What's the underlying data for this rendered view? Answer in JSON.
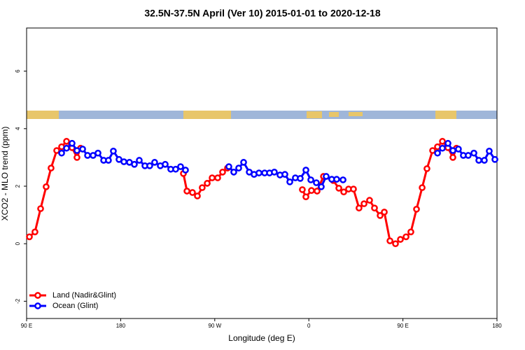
{
  "chart_data": {
    "type": "line",
    "title": "32.5N-37.5N April (Ver 10)   2015-01-01 to 2020-12-18",
    "x_label": "Longitude (deg E)",
    "y_label": "XCO2 - MLO trend (ppm)",
    "xlim": [
      90,
      540
    ],
    "xticks": [
      {
        "value": 90,
        "label": "90 E"
      },
      180,
      {
        "value": 270,
        "label": "90 W"
      },
      {
        "value": 360,
        "label": "0"
      },
      {
        "value": 450,
        "label": "90 E"
      },
      {
        "value": 540,
        "label": "180"
      }
    ],
    "ylim": [
      -2.6,
      7.5
    ],
    "yticks": [
      -2,
      0,
      2,
      4,
      6
    ],
    "legend": "bottom-left",
    "series": [
      {
        "name": "Land (Nadir&Glint)",
        "color": "#ff0000",
        "x": [
          92.7,
          98,
          103.4,
          108.7,
          113.4,
          118.8,
          123.5,
          128.2,
          133.5,
          138.2,
          141.6,
          null,
          240,
          243.4,
          248.7,
          253.4,
          258,
          262.8,
          267.5,
          272.8,
          277.5,
          282.2,
          null,
          353.8,
          357.2,
          362.5,
          367.9,
          374,
          383.3,
          388.7,
          393.4,
          398,
          402.7,
          408,
          412.8,
          418.1,
          422.8,
          428.2,
          432.2,
          437.6,
          442.9,
          447.6,
          453,
          457.6,
          463,
          468.4,
          473,
          478.4,
          483.1,
          487.8,
          493.1,
          497.8,
          501.2
        ],
        "values": [
          0.24,
          0.41,
          1.22,
          1.98,
          2.63,
          3.24,
          3.37,
          3.56,
          3.34,
          3.0,
          3.32,
          null,
          2.44,
          1.83,
          1.78,
          1.66,
          1.95,
          2.1,
          2.29,
          2.29,
          2.49,
          2.63,
          null,
          1.88,
          1.63,
          1.85,
          1.83,
          2.34,
          2.2,
          1.93,
          1.8,
          1.9,
          1.9,
          1.24,
          1.39,
          1.51,
          1.24,
          0.98,
          1.1,
          0.1,
          0,
          0.15,
          0.24,
          0.41,
          1.2,
          1.95,
          2.61,
          3.24,
          3.37,
          3.56,
          3.34,
          3.0,
          3.32
        ]
      },
      {
        "name": "Ocean (Glint)",
        "color": "#0000ff",
        "x": [
          123.5,
          128.2,
          133.5,
          138.2,
          143.6,
          148.3,
          153.6,
          158.3,
          163.7,
          168.3,
          173,
          178.4,
          183.1,
          188.4,
          193.1,
          197.8,
          203.2,
          207.8,
          212.5,
          217.9,
          222.6,
          227.9,
          232.6,
          237.3,
          242,
          null,
          283.5,
          288.2,
          292.9,
          297.6,
          303,
          307.6,
          312.3,
          317.7,
          322.4,
          327,
          332.4,
          337.1,
          341.8,
          347.1,
          351.8,
          357.2,
          361.9,
          367.2,
          371.9,
          376.6,
          381.9,
          386.6,
          392.7,
          null,
          483.1,
          487.8,
          493.1,
          497.8,
          503.1,
          507.8,
          512.5,
          517.9,
          522.6,
          527.9,
          532.6,
          538
        ],
        "values": [
          3.15,
          3.32,
          3.49,
          3.24,
          3.29,
          3.07,
          3.07,
          3.15,
          2.9,
          2.9,
          3.22,
          2.93,
          2.85,
          2.83,
          2.76,
          2.9,
          2.71,
          2.71,
          2.83,
          2.71,
          2.76,
          2.59,
          2.59,
          2.68,
          2.56,
          null,
          2.68,
          2.49,
          2.63,
          2.83,
          2.49,
          2.41,
          2.46,
          2.46,
          2.46,
          2.49,
          2.39,
          2.41,
          2.15,
          2.29,
          2.27,
          2.56,
          2.22,
          2.12,
          1.98,
          2.34,
          2.24,
          2.24,
          2.22,
          null,
          3.15,
          3.32,
          3.49,
          3.24,
          3.29,
          3.07,
          3.07,
          3.15,
          2.9,
          2.9,
          3.22,
          2.93
        ]
      }
    ]
  }
}
